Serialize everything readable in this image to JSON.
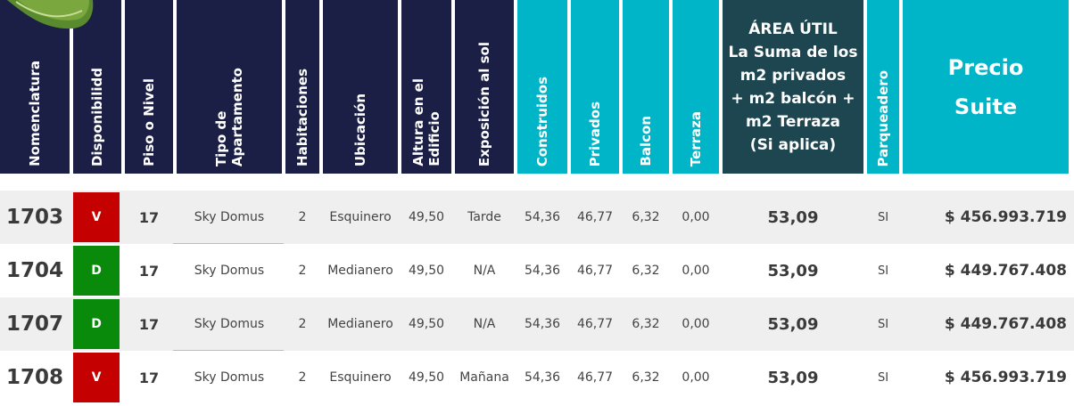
{
  "headers": {
    "nomenclatura": "Nomenclatura",
    "disponibilidad": "Disponibilidd",
    "piso": "Piso o Nivel",
    "tipo": "Tipo de\nApartamento",
    "habitaciones": "Habitaciones",
    "ubicacion": "Ubicación",
    "altura": "Altura en el\nEdificio",
    "exposicion": "Exposición al sol",
    "construidos": "Construidos",
    "privados": "Privados",
    "balcon": "Balcon",
    "terraza": "Terraza",
    "area_util": "ÁREA ÚTIL\nLa Suma de los\nm2 privados\n+ m2 balcón +\nm2 Terraza\n(Si aplica)",
    "parqueadero": "Parqueadero",
    "precio": "Precio\nSuite"
  },
  "colors": {
    "header_navy": "#1b1f45",
    "header_cyan": "#00b5c8",
    "header_teal": "#1d4650",
    "status_sold": "#c40000",
    "status_available": "#0a8a0a"
  },
  "rows": [
    {
      "nomenclatura": "1703",
      "disponibilidad": "V",
      "status": "sold",
      "piso": "17",
      "tipo": "Sky Domus",
      "habitaciones": "2",
      "ubicacion": "Esquinero",
      "altura": "49,50",
      "exposicion": "Tarde",
      "construidos": "54,36",
      "privados": "46,77",
      "balcon": "6,32",
      "terraza": "0,00",
      "area_util": "53,09",
      "parqueadero": "SI",
      "precio": "$ 456.993.719"
    },
    {
      "nomenclatura": "1704",
      "disponibilidad": "D",
      "status": "available",
      "piso": "17",
      "tipo": "Sky Domus",
      "habitaciones": "2",
      "ubicacion": "Medianero",
      "altura": "49,50",
      "exposicion": "N/A",
      "construidos": "54,36",
      "privados": "46,77",
      "balcon": "6,32",
      "terraza": "0,00",
      "area_util": "53,09",
      "parqueadero": "SI",
      "precio": "$ 449.767.408"
    },
    {
      "nomenclatura": "1707",
      "disponibilidad": "D",
      "status": "available",
      "piso": "17",
      "tipo": "Sky Domus",
      "habitaciones": "2",
      "ubicacion": "Medianero",
      "altura": "49,50",
      "exposicion": "N/A",
      "construidos": "54,36",
      "privados": "46,77",
      "balcon": "6,32",
      "terraza": "0,00",
      "area_util": "53,09",
      "parqueadero": "SI",
      "precio": "$ 449.767.408"
    },
    {
      "nomenclatura": "1708",
      "disponibilidad": "V",
      "status": "sold",
      "piso": "17",
      "tipo": "Sky Domus",
      "habitaciones": "2",
      "ubicacion": "Esquinero",
      "altura": "49,50",
      "exposicion": "Mañana",
      "construidos": "54,36",
      "privados": "46,77",
      "balcon": "6,32",
      "terraza": "0,00",
      "area_util": "53,09",
      "parqueadero": "SI",
      "precio": "$ 456.993.719"
    }
  ]
}
